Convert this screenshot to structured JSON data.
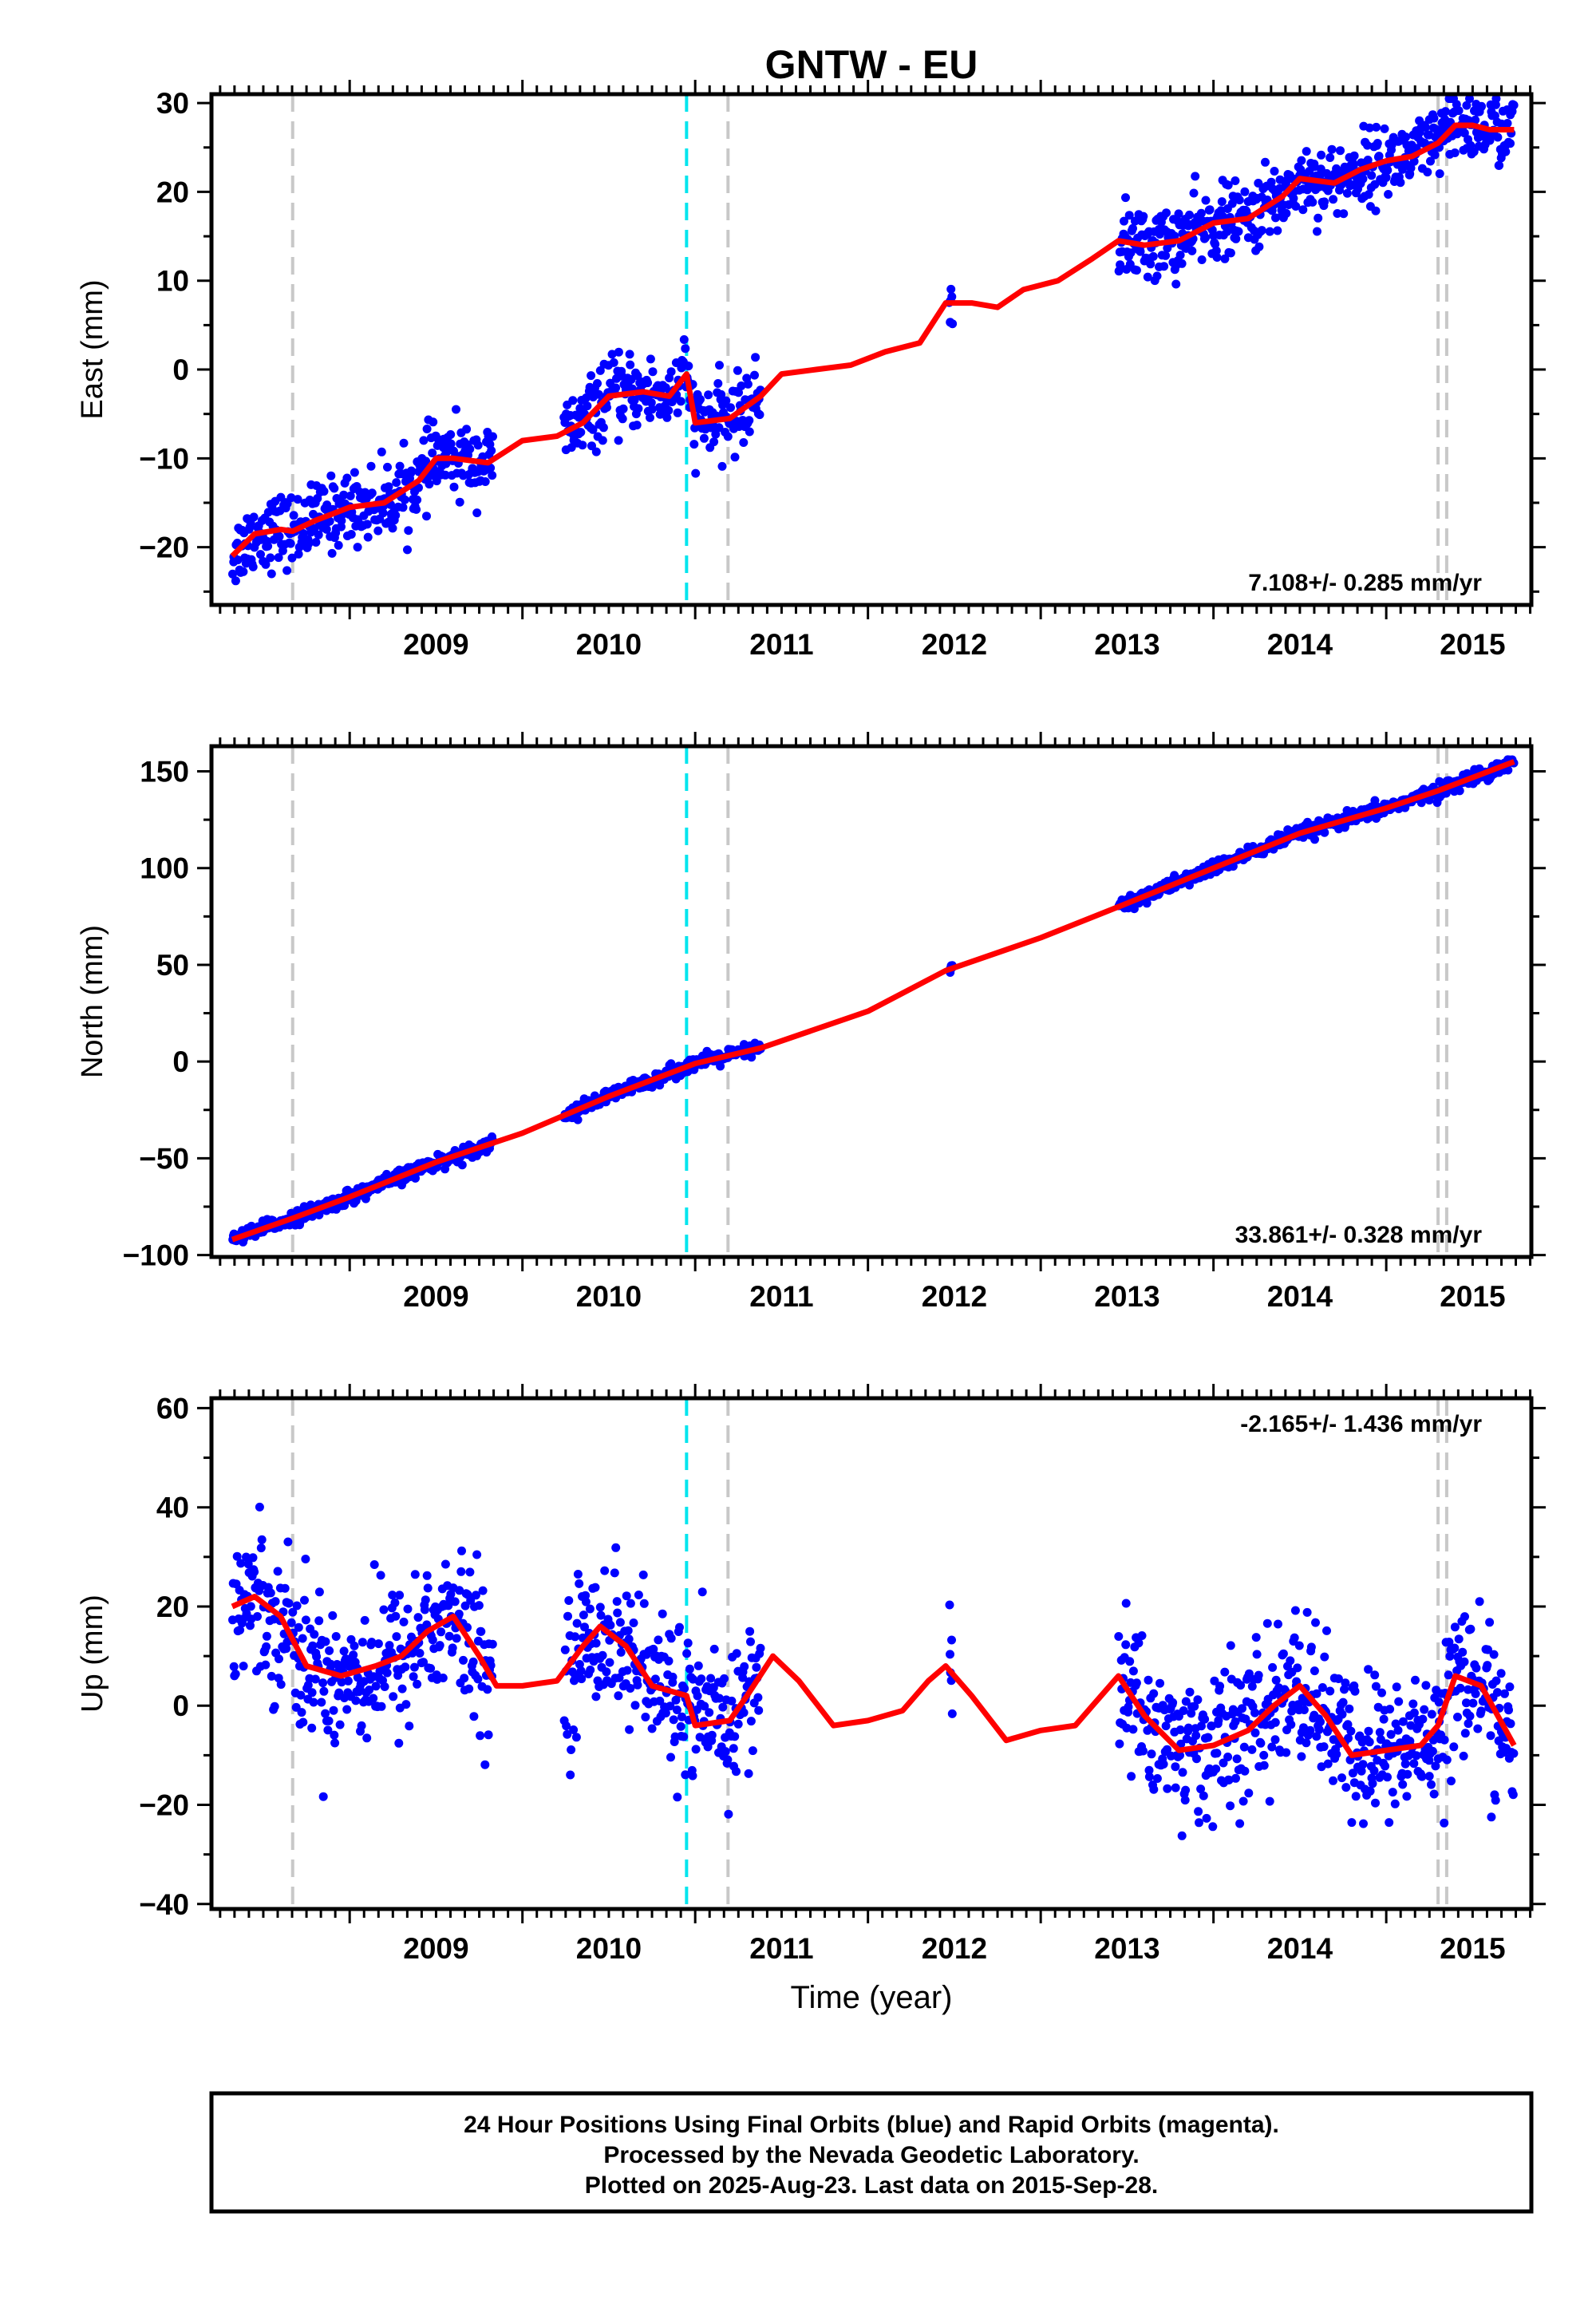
{
  "title": "GNTW - EU",
  "xlabel": "Time (year)",
  "colors": {
    "data": "#0000ff",
    "model": "#ff0000",
    "equipment_change": "#c8c8c8",
    "earthquake": "#00e5ee"
  },
  "notes": {
    "line1": "24 Hour Positions Using Final Orbits (blue) and Rapid Orbits (magenta).",
    "line2": "Processed by the Nevada Geodetic Laboratory.",
    "line3": "Plotted on 2025-Aug-23. Last data on 2015-Sep-28."
  },
  "chart_data": [
    {
      "type": "scatter",
      "component": "East",
      "ylabel": "East (mm)",
      "rate_label": "7.108+/- 0.285 mm/yr",
      "rate_position": "bottom-right",
      "xlim": [
        2008.2,
        2015.84
      ],
      "ylim": [
        -26.5,
        31
      ],
      "x_ticks": [
        2009,
        2010,
        2011,
        2012,
        2013,
        2014,
        2015
      ],
      "y_ticks": [
        -20,
        -10,
        0,
        10,
        20,
        30
      ],
      "y_tick_labels": [
        "−20",
        "−10",
        "0",
        "10",
        "20",
        "30"
      ],
      "vertical_lines": {
        "equipment_change": [
          2008.67,
          2011.19,
          2015.3,
          2015.35
        ],
        "earthquake": [
          2010.95
        ]
      },
      "data_segments": [
        [
          2008.32,
          2009.83
        ],
        [
          2010.24,
          2011.0
        ],
        [
          2011.0,
          2011.38
        ],
        [
          2012.47,
          2012.49
        ],
        [
          2013.45,
          2015.74
        ]
      ],
      "model_curve": {
        "x": [
          2008.32,
          2008.45,
          2008.6,
          2008.67,
          2008.8,
          2009.0,
          2009.2,
          2009.4,
          2009.5,
          2009.6,
          2009.8,
          2010.0,
          2010.2,
          2010.35,
          2010.5,
          2010.7,
          2010.85,
          2010.95,
          2011.0,
          2011.2,
          2011.38,
          2011.5,
          2011.7,
          2011.9,
          2012.1,
          2012.3,
          2012.45,
          2012.6,
          2012.75,
          2012.9,
          2013.1,
          2013.3,
          2013.45,
          2013.6,
          2013.8,
          2014.0,
          2014.2,
          2014.4,
          2014.5,
          2014.7,
          2014.85,
          2015.0,
          2015.15,
          2015.3,
          2015.4,
          2015.5,
          2015.6,
          2015.74
        ],
        "y": [
          -21,
          -18.5,
          -18,
          -18.2,
          -17,
          -15.5,
          -15,
          -12.5,
          -10,
          -10,
          -10.5,
          -8,
          -7.5,
          -6,
          -3,
          -2.5,
          -3,
          -0.5,
          -6,
          -5.5,
          -3,
          -0.5,
          0,
          0.5,
          2,
          3,
          7.5,
          7.5,
          7,
          9,
          10,
          12.5,
          14.5,
          14,
          14.5,
          16.5,
          17,
          19.5,
          21.5,
          21,
          22.5,
          23.5,
          24,
          25.5,
          27.5,
          27.5,
          27,
          27
        ]
      }
    },
    {
      "type": "scatter",
      "component": "North",
      "ylabel": "North (mm)",
      "rate_label": "33.861+/- 0.328 mm/yr",
      "rate_position": "bottom-right",
      "xlim": [
        2008.2,
        2015.84
      ],
      "ylim": [
        -101,
        163
      ],
      "x_ticks": [
        2009,
        2010,
        2011,
        2012,
        2013,
        2014,
        2015
      ],
      "y_ticks": [
        -100,
        -50,
        0,
        50,
        100,
        150
      ],
      "y_tick_labels": [
        "−100",
        "−50",
        "0",
        "50",
        "100",
        "150"
      ],
      "vertical_lines": {
        "equipment_change": [
          2008.67,
          2011.19,
          2015.3,
          2015.35
        ],
        "earthquake": [
          2010.95
        ]
      },
      "data_segments": [
        [
          2008.32,
          2009.83
        ],
        [
          2010.24,
          2011.0
        ],
        [
          2011.0,
          2011.38
        ],
        [
          2012.47,
          2012.49
        ],
        [
          2013.45,
          2015.74
        ]
      ],
      "model_curve": {
        "x": [
          2008.32,
          2008.67,
          2009.0,
          2009.5,
          2010.0,
          2010.5,
          2011.0,
          2011.38,
          2012.0,
          2012.45,
          2013.0,
          2013.45,
          2014.0,
          2014.5,
          2015.0,
          2015.3,
          2015.74
        ],
        "y": [
          -92,
          -81,
          -70,
          -52,
          -37,
          -18,
          -1,
          7,
          26,
          47,
          64,
          80,
          100,
          118,
          131,
          140,
          155
        ]
      }
    },
    {
      "type": "scatter",
      "component": "Up",
      "ylabel": "Up (mm)",
      "rate_label": "-2.165+/- 1.436 mm/yr",
      "rate_position": "top-right",
      "xlim": [
        2008.2,
        2015.84
      ],
      "ylim": [
        -41,
        62
      ],
      "x_ticks": [
        2009,
        2010,
        2011,
        2012,
        2013,
        2014,
        2015
      ],
      "y_ticks": [
        -40,
        -20,
        0,
        20,
        40,
        60
      ],
      "y_tick_labels": [
        "−40",
        "−20",
        "0",
        "20",
        "40",
        "60"
      ],
      "vertical_lines": {
        "equipment_change": [
          2008.67,
          2011.19,
          2015.3,
          2015.35
        ],
        "earthquake": [
          2010.95
        ]
      },
      "data_segments": [
        [
          2008.32,
          2009.83
        ],
        [
          2010.24,
          2011.0
        ],
        [
          2011.0,
          2011.38
        ],
        [
          2012.47,
          2012.49
        ],
        [
          2013.45,
          2015.74
        ]
      ],
      "model_curve": {
        "x": [
          2008.32,
          2008.45,
          2008.6,
          2008.75,
          2008.95,
          2009.15,
          2009.3,
          2009.45,
          2009.6,
          2009.75,
          2009.85,
          2010.0,
          2010.2,
          2010.35,
          2010.45,
          2010.6,
          2010.75,
          2010.95,
          2011.0,
          2011.2,
          2011.3,
          2011.45,
          2011.6,
          2011.8,
          2012.0,
          2012.2,
          2012.35,
          2012.45,
          2012.6,
          2012.8,
          2013.0,
          2013.2,
          2013.3,
          2013.45,
          2013.6,
          2013.8,
          2014.0,
          2014.2,
          2014.35,
          2014.5,
          2014.65,
          2014.8,
          2015.0,
          2015.2,
          2015.3,
          2015.4,
          2015.55,
          2015.74
        ],
        "y": [
          20,
          22,
          18,
          8,
          6,
          8,
          10,
          15,
          18,
          10,
          4,
          4,
          5,
          12,
          16,
          12,
          4,
          2,
          -4,
          -3,
          2,
          10,
          5,
          -4,
          -3,
          -1,
          5,
          8,
          2,
          -7,
          -5,
          -4,
          0,
          6,
          -2,
          -9,
          -8,
          -5,
          0,
          4,
          -2,
          -10,
          -9,
          -8,
          -4,
          6,
          4,
          -8
        ]
      }
    }
  ]
}
